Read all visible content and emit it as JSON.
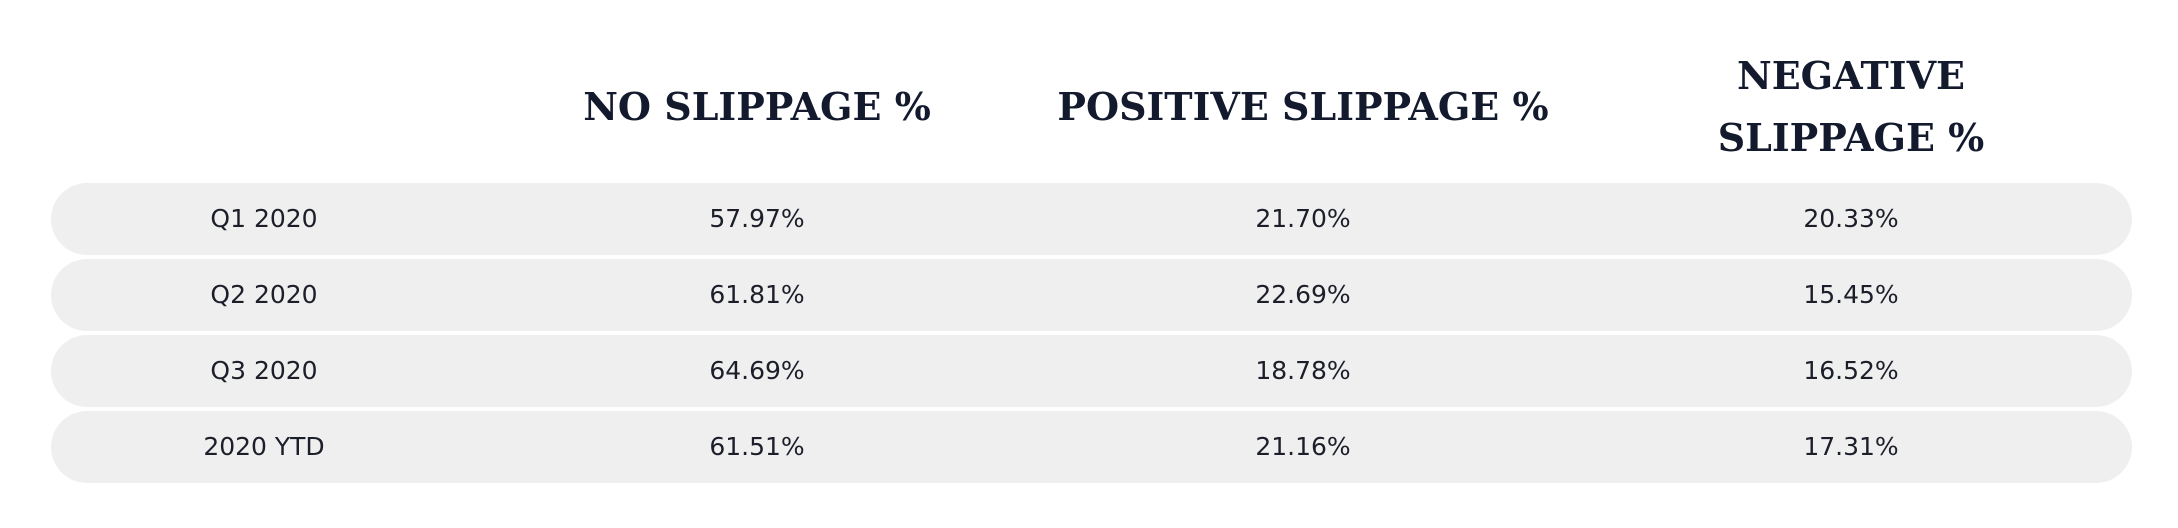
{
  "table": {
    "header": [
      "NO SLIPPAGE %",
      "POSITIVE SLIPPAGE %",
      "NEGATIVE SLIPPAGE %"
    ],
    "rows": [
      [
        "Q1 2020",
        "57.97%",
        "21.70%",
        "20.33%"
      ],
      [
        "Q2 2020",
        "61.81%",
        "22.69%",
        "15.45%"
      ],
      [
        "Q3 2020",
        "64.69%",
        "18.78%",
        "16.52%"
      ],
      [
        "2020 YTD",
        "61.51%",
        "21.16%",
        "17.31%"
      ]
    ]
  }
}
